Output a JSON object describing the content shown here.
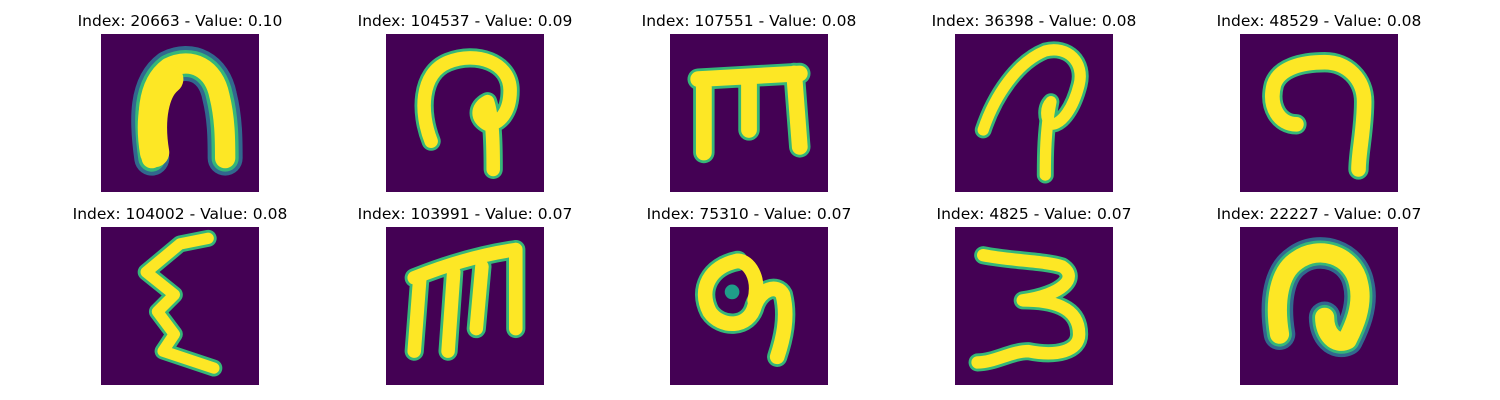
{
  "figure": {
    "panels": [
      {
        "title": "Index: 20663 - Value: 0.10",
        "glyph": "glyph-n-thick"
      },
      {
        "title": "Index: 104537 - Value: 0.09",
        "glyph": "glyph-hook-loop"
      },
      {
        "title": "Index: 107551 - Value: 0.08",
        "glyph": "glyph-three-legged-box"
      },
      {
        "title": "Index: 36398 - Value: 0.08",
        "glyph": "glyph-slanted-p"
      },
      {
        "title": "Index: 48529 - Value: 0.08",
        "glyph": "glyph-open-arch"
      },
      {
        "title": "Index: 104002 - Value: 0.08",
        "glyph": "glyph-zigzag-epsilon"
      },
      {
        "title": "Index: 103991 - Value: 0.07",
        "glyph": "glyph-m-shape"
      },
      {
        "title": "Index: 75310 - Value: 0.07",
        "glyph": "glyph-loop-tail"
      },
      {
        "title": "Index: 4825 - Value: 0.07",
        "glyph": "glyph-three-shape"
      },
      {
        "title": "Index: 22227 - Value: 0.07",
        "glyph": "glyph-thick-arch"
      }
    ],
    "colors": {
      "background": "#440154",
      "stroke_core": "#fde725",
      "stroke_edge": "#35b779",
      "stroke_outer": "#31688e"
    }
  }
}
